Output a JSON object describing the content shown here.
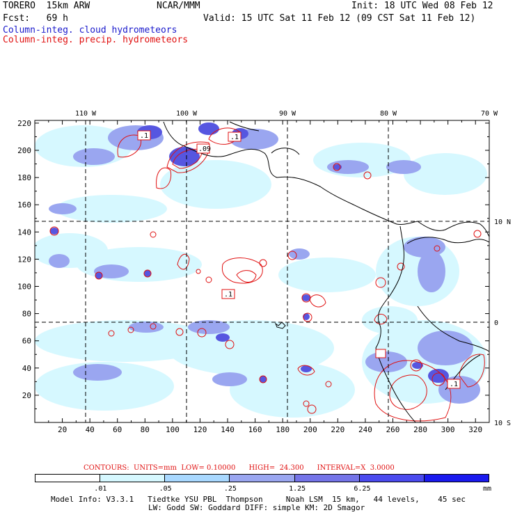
{
  "header": {
    "model": "TORERO  15km ARW",
    "center": "NCAR/MMM",
    "init": "Init: 18 UTC Wed 08 Feb 12",
    "fcst": "Fcst:   69 h",
    "valid": "Valid: 15 UTC Sat 11 Feb 12 (09 CST Sat 11 Feb 12)"
  },
  "fields": {
    "cloud": "Column-integ. cloud hydrometeors",
    "precip": "Column-integ. precip. hydrometeors"
  },
  "map": {
    "lon_labels": [
      "110 W",
      "100 W",
      "90 W",
      "80 W",
      "70 W"
    ],
    "lat_labels": [
      "10 N",
      "0",
      "10 S"
    ],
    "x_ticks": [
      "20",
      "40",
      "60",
      "80",
      "100",
      "120",
      "140",
      "160",
      "180",
      "200",
      "220",
      "240",
      "260",
      "280",
      "300",
      "320"
    ],
    "y_ticks": [
      "220",
      "200",
      "180",
      "160",
      "140",
      "120",
      "100",
      "80",
      "60",
      "40",
      "20"
    ],
    "box_labels": [
      ".1",
      ".1",
      ".1",
      ".1",
      ".1"
    ],
    "box_labels_mid": ".09"
  },
  "contours": {
    "text": "CONTOURS:  UNITS=mm  LOW= 0.10000      HIGH=  24.300      INTERVAL=X  3.0000"
  },
  "legend": {
    "values": [
      ".01",
      ".05",
      ".25",
      "1.25",
      "6.25"
    ],
    "units": "mm",
    "colors": [
      "#ffffff",
      "#d6f8ff",
      "#a8d8ff",
      "#9aa6f0",
      "#7474e8",
      "#4a4aee",
      "#1a1aee"
    ]
  },
  "footer": {
    "line1": "Model Info: V3.3.1   Tiedtke YSU PBL  Thompson     Noah LSM  15 km,   44 levels,    45 sec",
    "line2": "LW: Godd SW: Goddard DIFF: simple KM: 2D Smagor"
  }
}
